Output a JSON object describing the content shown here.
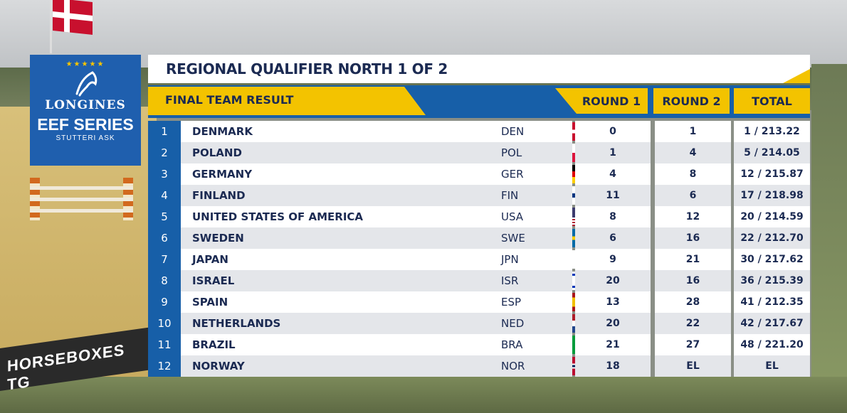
{
  "logo": {
    "brand": "LONGINES",
    "series": "EEF SERIES",
    "sponsor": "STUTTERI ASK"
  },
  "background": {
    "banner_text": "HORSEBOXES TG"
  },
  "header": {
    "title": "REGIONAL QUALIFIER NORTH 1 OF 2",
    "subtitle": "FINAL TEAM RESULT",
    "columns": [
      "ROUND 1",
      "ROUND 2",
      "TOTAL"
    ]
  },
  "results": [
    {
      "rank": "1",
      "team": "DENMARK",
      "code": "DEN",
      "flag": "denmark-flag-icon",
      "round1": "0",
      "round2": "1",
      "total": "1 / 213.22"
    },
    {
      "rank": "2",
      "team": "POLAND",
      "code": "POL",
      "flag": "poland-flag-icon",
      "round1": "1",
      "round2": "4",
      "total": "5 / 214.05"
    },
    {
      "rank": "3",
      "team": "GERMANY",
      "code": "GER",
      "flag": "germany-flag-icon",
      "round1": "4",
      "round2": "8",
      "total": "12 / 215.87"
    },
    {
      "rank": "4",
      "team": "FINLAND",
      "code": "FIN",
      "flag": "finland-flag-icon",
      "round1": "11",
      "round2": "6",
      "total": "17 / 218.98"
    },
    {
      "rank": "5",
      "team": "UNITED STATES OF AMERICA",
      "code": "USA",
      "flag": "usa-flag-icon",
      "round1": "8",
      "round2": "12",
      "total": "20 / 214.59"
    },
    {
      "rank": "6",
      "team": "SWEDEN",
      "code": "SWE",
      "flag": "sweden-flag-icon",
      "round1": "6",
      "round2": "16",
      "total": "22 / 212.70"
    },
    {
      "rank": "7",
      "team": "JAPAN",
      "code": "JPN",
      "flag": "japan-flag-icon",
      "round1": "9",
      "round2": "21",
      "total": "30 / 217.62"
    },
    {
      "rank": "8",
      "team": "ISRAEL",
      "code": "ISR",
      "flag": "israel-flag-icon",
      "round1": "20",
      "round2": "16",
      "total": "36 / 215.39"
    },
    {
      "rank": "9",
      "team": "SPAIN",
      "code": "ESP",
      "flag": "spain-flag-icon",
      "round1": "13",
      "round2": "28",
      "total": "41 / 212.35"
    },
    {
      "rank": "10",
      "team": "NETHERLANDS",
      "code": "NED",
      "flag": "netherlands-flag-icon",
      "round1": "20",
      "round2": "22",
      "total": "42 / 217.67"
    },
    {
      "rank": "11",
      "team": "BRAZIL",
      "code": "BRA",
      "flag": "brazil-flag-icon",
      "round1": "21",
      "round2": "27",
      "total": "48 / 221.20"
    },
    {
      "rank": "12",
      "team": "NORWAY",
      "code": "NOR",
      "flag": "norway-flag-icon",
      "round1": "18",
      "round2": "EL",
      "total": "EL"
    }
  ],
  "colors": {
    "navy": "#1b2a52",
    "blue": "#175fa8",
    "yellow": "#f3c300",
    "row_alt": "#e4e6ea"
  }
}
